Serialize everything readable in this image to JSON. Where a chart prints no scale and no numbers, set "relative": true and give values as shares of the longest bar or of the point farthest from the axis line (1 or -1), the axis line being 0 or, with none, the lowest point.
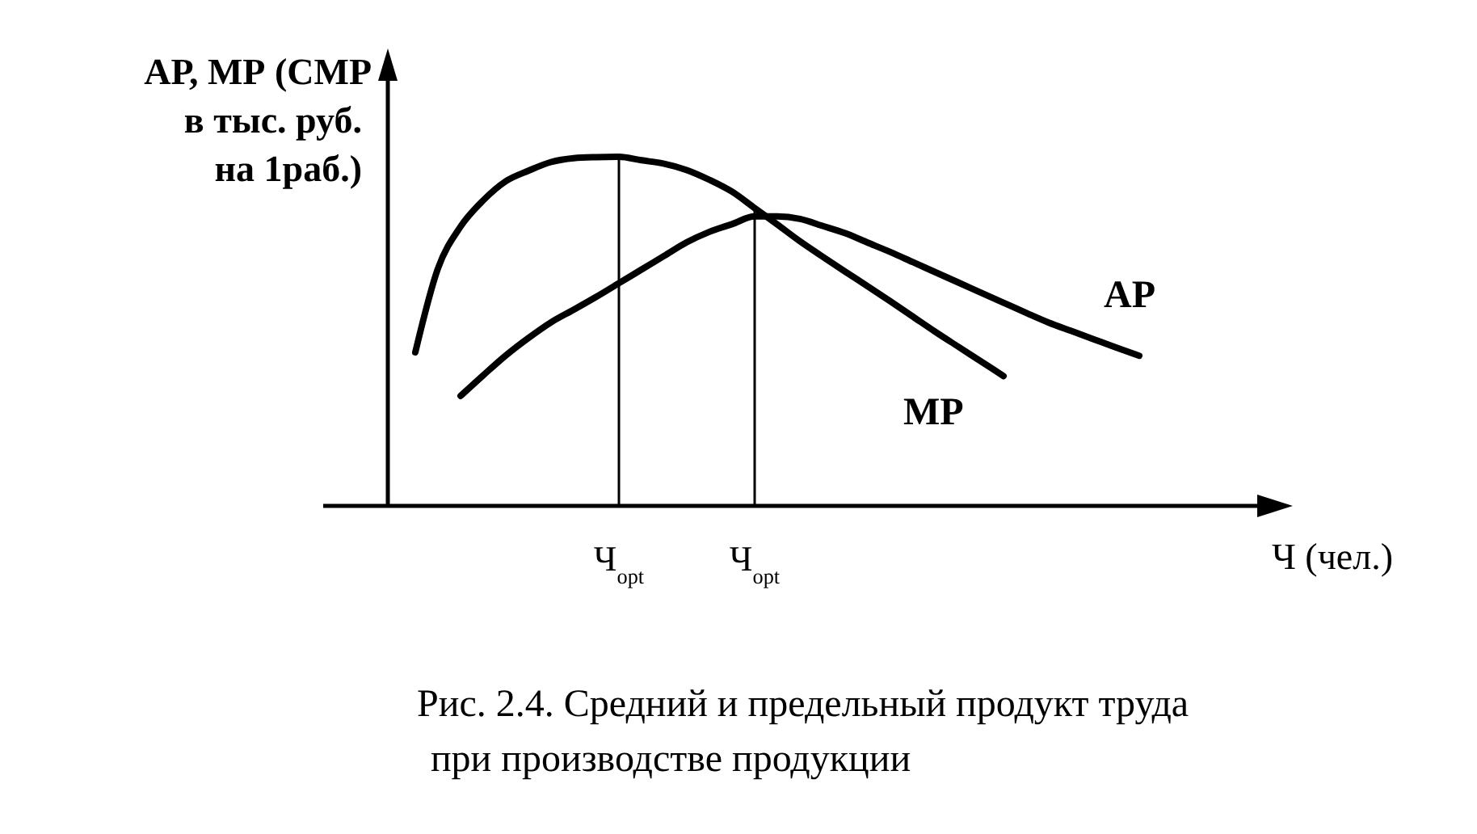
{
  "chart_data": {
    "type": "line",
    "relative": true,
    "title": "Рис. 2.4. Средний и предельный продукт труда\nпри производстве продукции",
    "ylabel": "АР, МР (СМР\nв тыс. руб.\nна 1раб.)",
    "xlabel": "Ч (чел.)",
    "grid": "x",
    "marker": "none",
    "line_style": "solid",
    "categories": [
      null,
      null,
      null,
      null,
      null,
      null,
      null,
      null,
      null,
      "Ч$_{opt}$",
      null,
      null,
      null,
      null,
      null,
      "Ч$_{opt}$",
      null,
      null,
      null,
      null,
      null,
      null,
      null,
      null,
      null,
      null,
      null,
      null,
      null,
      null,
      null,
      null,
      null
    ],
    "series": [
      {
        "name": "МР",
        "color": "#000000",
        "values": [
          0.44,
          0.68,
          0.8,
          0.875,
          0.93,
          0.96,
          0.985,
          0.996,
          0.999,
          1.0,
          0.99,
          0.98,
          0.962,
          0.934,
          0.9,
          0.853,
          0.806,
          0.758,
          0.714,
          0.671,
          0.629,
          0.586,
          0.542,
          0.498,
          0.456,
          0.414,
          0.372,
          null,
          null,
          null,
          null,
          null,
          null
        ]
      },
      {
        "name": "АР",
        "color": "#000000",
        "values": [
          null,
          null,
          0.315,
          0.374,
          0.431,
          0.481,
          0.526,
          0.562,
          0.599,
          0.638,
          0.677,
          0.716,
          0.755,
          0.785,
          0.807,
          0.829,
          0.829,
          0.822,
          0.802,
          0.781,
          0.754,
          0.727,
          0.698,
          0.669,
          0.64,
          0.611,
          0.582,
          0.553,
          0.525,
          0.501,
          0.477,
          0.453,
          0.43
        ]
      }
    ]
  }
}
